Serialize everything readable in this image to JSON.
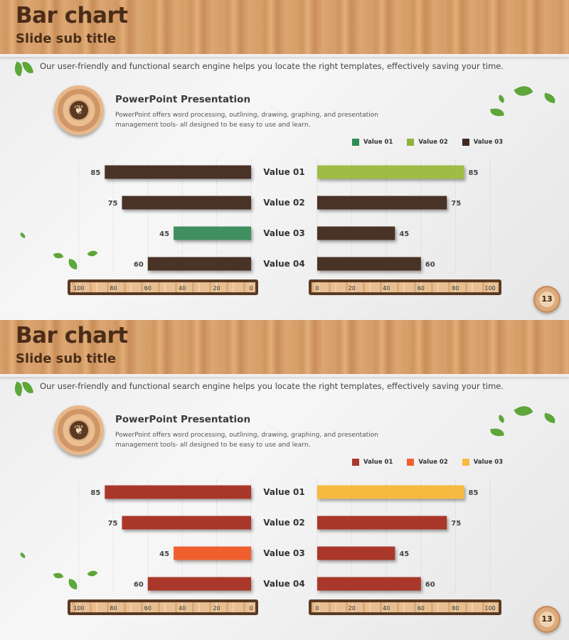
{
  "slides": [
    {
      "title": "Bar chart",
      "subtitle": "Slide sub title",
      "intro": "Our user-friendly and functional search engine helps you locate the right templates, effectively  saving your time.",
      "pp_title": "PowerPoint Presentation",
      "pp_desc": "PowerPoint offers word processing, outlining, drawing, graphing, and presentation management tools- all designed to be easy to use and learn.",
      "page_number": "13",
      "legend": [
        {
          "name": "Value 01",
          "color": "#2e8b57"
        },
        {
          "name": "Value 02",
          "color": "#8fb33a"
        },
        {
          "name": "Value 03",
          "color": "#3e2a1e"
        }
      ]
    },
    {
      "title": "Bar chart",
      "subtitle": "Slide sub title",
      "intro": "Our user-friendly and functional search engine helps you locate the right templates, effectively  saving your time.",
      "pp_title": "PowerPoint Presentation",
      "pp_desc": "PowerPoint offers word processing, outlining, drawing, graphing, and presentation management tools- all designed to be easy to use and learn.",
      "page_number": "13",
      "legend": [
        {
          "name": "Value 01",
          "color": "#a9392a"
        },
        {
          "name": "Value 02",
          "color": "#f0612f"
        },
        {
          "name": "Value 03",
          "color": "#f7b940"
        }
      ]
    }
  ],
  "chart_data": [
    {
      "type": "bar",
      "orientation": "horizontal",
      "layout": "butterfly",
      "categories": [
        "Value 01",
        "Value 02",
        "Value 03",
        "Value 04"
      ],
      "left": {
        "values": [
          85,
          75,
          45,
          60
        ],
        "colors": [
          "#4a3326",
          "#4a3326",
          "#3f8f5f",
          "#4a3326"
        ],
        "xlim": [
          100,
          0
        ],
        "ticks": [
          100,
          80,
          60,
          40,
          20,
          0
        ]
      },
      "right": {
        "values": [
          85,
          75,
          45,
          60
        ],
        "colors": [
          "#9ebd44",
          "#4a3326",
          "#4a3326",
          "#4a3326"
        ],
        "xlim": [
          0,
          100
        ],
        "ticks": [
          0,
          20,
          40,
          60,
          80,
          100
        ]
      },
      "grid": true
    },
    {
      "type": "bar",
      "orientation": "horizontal",
      "layout": "butterfly",
      "categories": [
        "Value 01",
        "Value 02",
        "Value 03",
        "Value 04"
      ],
      "left": {
        "values": [
          85,
          75,
          45,
          60
        ],
        "colors": [
          "#a9392a",
          "#a9392a",
          "#f0612f",
          "#a9392a"
        ],
        "xlim": [
          100,
          0
        ],
        "ticks": [
          100,
          80,
          60,
          40,
          20,
          0
        ]
      },
      "right": {
        "values": [
          85,
          75,
          45,
          60
        ],
        "colors": [
          "#f7b940",
          "#a9392a",
          "#a9392a",
          "#a9392a"
        ],
        "xlim": [
          0,
          100
        ],
        "ticks": [
          0,
          20,
          40,
          60,
          80,
          100
        ]
      },
      "grid": true
    }
  ]
}
